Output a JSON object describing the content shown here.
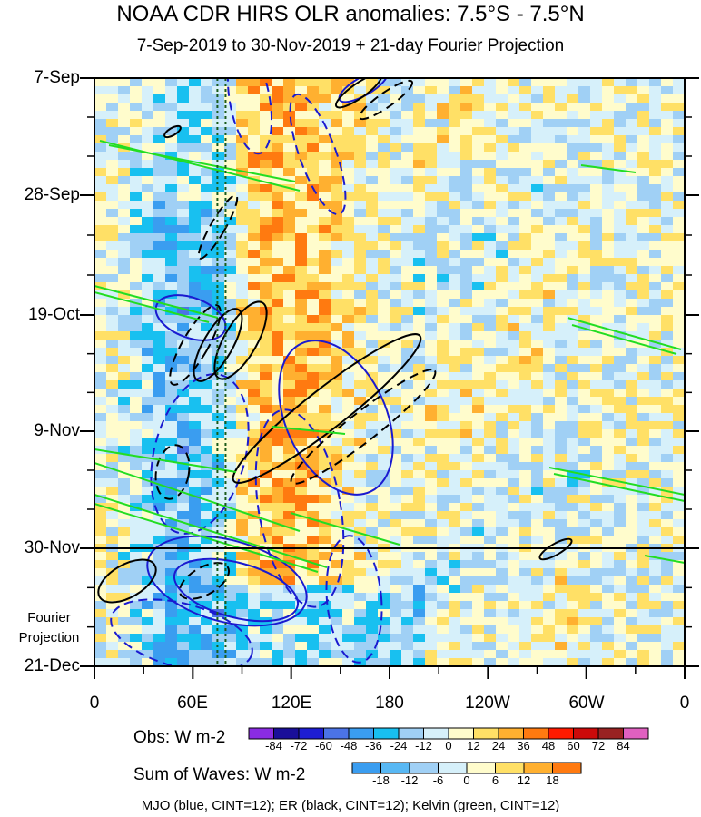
{
  "chart_data": {
    "type": "heatmap",
    "title": "NOAA CDR HIRS OLR anomalies: 7.5°S - 7.5°N",
    "subtitle": "7-Sep-2019 to 30-Nov-2019 + 21-day Fourier Projection",
    "x_tick_labels": [
      "0",
      "60E",
      "120E",
      "180",
      "120W",
      "60W",
      "0"
    ],
    "xlim": [
      0,
      360
    ],
    "y_tick_labels": [
      "7-Sep",
      "28-Sep",
      "19-Oct",
      "9-Nov",
      "30-Nov",
      "21-Dec"
    ],
    "projection_label": [
      "Fourier",
      "Projection"
    ],
    "observation_end": "30-Nov",
    "reference_longitudes": [
      75,
      80
    ],
    "obs_colorbar": {
      "label": "Obs: W m-2",
      "ticks": [
        "-84",
        "-72",
        "-60",
        "-48",
        "-36",
        "-24",
        "-12",
        "0",
        "12",
        "24",
        "36",
        "48",
        "60",
        "72",
        "84"
      ],
      "colors": [
        "#8a2be2",
        "#1a0f99",
        "#1e1ed2",
        "#4b73e6",
        "#3a9df0",
        "#18c0f0",
        "#a0d0f5",
        "#d6f0fa",
        "#fffccc",
        "#ffe066",
        "#ffb030",
        "#ff7a10",
        "#ff1a00",
        "#cc0a0a",
        "#992222",
        "#e060c0"
      ]
    },
    "waves_colorbar": {
      "label": "Sum of Waves: W m-2",
      "ticks": [
        "-18",
        "-12",
        "-6",
        "0",
        "6",
        "12",
        "18"
      ],
      "colors": [
        "#3a9df0",
        "#58b8f4",
        "#a0d0f5",
        "#d6f0fa",
        "#fffccc",
        "#ffe066",
        "#ffb030",
        "#ff7a10"
      ]
    },
    "contour_legend": "MJO (blue, CINT=12); ER (black, CINT=12); Kelvin (green, CINT=12)",
    "series_colors": {
      "MJO": "#1a1ad0",
      "ER": "#000000",
      "Kelvin": "#22dd22"
    }
  }
}
